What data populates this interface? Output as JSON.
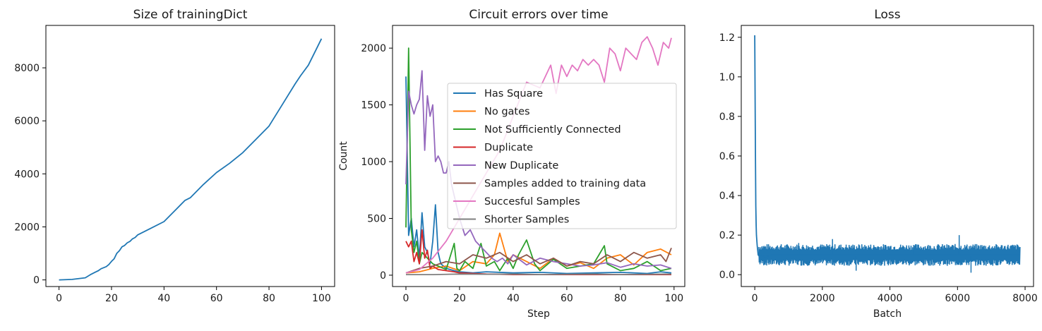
{
  "chart_data": [
    {
      "type": "line",
      "title": "Size of trainingDict",
      "xlabel": "",
      "ylabel": "",
      "xlim": [
        -5,
        105
      ],
      "ylim": [
        -250,
        9600
      ],
      "xticks": [
        0,
        20,
        40,
        60,
        80,
        100
      ],
      "yticks": [
        0,
        2000,
        4000,
        6000,
        8000
      ],
      "series": [
        {
          "color": "#1f77b4",
          "x": [
            0,
            5,
            10,
            12,
            14,
            15,
            16,
            18,
            19,
            20,
            21,
            22,
            23,
            24,
            25,
            26,
            27,
            28,
            29,
            30,
            35,
            40,
            45,
            48,
            50,
            55,
            60,
            65,
            70,
            75,
            80,
            85,
            90,
            92,
            95,
            98,
            100
          ],
          "y": [
            0,
            20,
            80,
            200,
            300,
            350,
            420,
            500,
            580,
            700,
            800,
            1000,
            1100,
            1250,
            1300,
            1400,
            1450,
            1550,
            1600,
            1700,
            1950,
            2200,
            2700,
            3000,
            3100,
            3600,
            4050,
            4400,
            4800,
            5300,
            5800,
            6600,
            7400,
            7700,
            8100,
            8700,
            9100
          ]
        }
      ]
    },
    {
      "type": "line",
      "title": "Circuit errors over time",
      "xlabel": "Step",
      "ylabel": "Count",
      "xlim": [
        -5,
        104
      ],
      "ylim": [
        -100,
        2200
      ],
      "xticks": [
        0,
        20,
        40,
        60,
        80,
        100
      ],
      "yticks": [
        0,
        500,
        1000,
        1500,
        2000
      ],
      "legend_position": "center-right",
      "series": [
        {
          "name": "Has Square",
          "color": "#1f77b4",
          "x": [
            0,
            1,
            2,
            3,
            4,
            5,
            6,
            7,
            8,
            9,
            10,
            11,
            12,
            13,
            14,
            15,
            18,
            20,
            25,
            30,
            40,
            50,
            60,
            70,
            80,
            90,
            95,
            99
          ],
          "y": [
            1750,
            350,
            500,
            250,
            400,
            150,
            550,
            250,
            200,
            100,
            300,
            620,
            200,
            100,
            80,
            60,
            40,
            30,
            20,
            30,
            20,
            25,
            15,
            20,
            25,
            15,
            30,
            20
          ]
        },
        {
          "name": "No gates",
          "color": "#ff7f0e",
          "x": [
            0,
            5,
            10,
            15,
            20,
            25,
            30,
            33,
            35,
            38,
            40,
            45,
            50,
            55,
            60,
            65,
            70,
            75,
            80,
            85,
            90,
            95,
            99
          ],
          "y": [
            20,
            30,
            60,
            80,
            40,
            120,
            100,
            180,
            370,
            120,
            180,
            120,
            60,
            150,
            80,
            110,
            60,
            150,
            180,
            90,
            200,
            230,
            180
          ]
        },
        {
          "name": "Not Sufficiently Connected",
          "color": "#2ca02c",
          "x": [
            0,
            1,
            2,
            3,
            4,
            5,
            6,
            8,
            10,
            12,
            15,
            18,
            19,
            20,
            22,
            25,
            28,
            30,
            33,
            35,
            38,
            40,
            42,
            45,
            48,
            50,
            55,
            60,
            65,
            70,
            72,
            74,
            75,
            80,
            85,
            90,
            95,
            99
          ],
          "y": [
            420,
            2000,
            400,
            200,
            300,
            100,
            200,
            150,
            100,
            80,
            50,
            280,
            60,
            40,
            120,
            60,
            280,
            80,
            120,
            40,
            150,
            60,
            180,
            310,
            100,
            40,
            140,
            60,
            80,
            100,
            180,
            260,
            100,
            40,
            60,
            120,
            40,
            60
          ]
        },
        {
          "name": "Duplicate",
          "color": "#d62728",
          "x": [
            0,
            1,
            2,
            3,
            4,
            5,
            6,
            7,
            8,
            9,
            10,
            12,
            15,
            18,
            20,
            25,
            30,
            35,
            40,
            45,
            50,
            60,
            70,
            80,
            90,
            99
          ],
          "y": [
            300,
            250,
            300,
            120,
            200,
            100,
            400,
            150,
            220,
            60,
            80,
            50,
            40,
            30,
            20,
            15,
            10,
            8,
            5,
            5,
            5,
            5,
            5,
            5,
            5,
            5
          ]
        },
        {
          "name": "New Duplicate",
          "color": "#9467bd",
          "x": [
            0,
            1,
            2,
            3,
            4,
            5,
            6,
            7,
            8,
            9,
            10,
            11,
            12,
            13,
            14,
            15,
            16,
            17,
            18,
            19,
            20,
            22,
            24,
            26,
            28,
            30,
            32,
            34,
            36,
            38,
            40,
            45,
            50,
            55,
            60,
            65,
            70,
            75,
            80,
            85,
            90,
            95,
            99
          ],
          "y": [
            800,
            1620,
            1500,
            1420,
            1500,
            1550,
            1800,
            1100,
            1580,
            1400,
            1500,
            1000,
            1050,
            1000,
            900,
            900,
            1000,
            800,
            700,
            600,
            500,
            350,
            400,
            300,
            250,
            200,
            150,
            120,
            150,
            100,
            180,
            90,
            150,
            120,
            100,
            80,
            90,
            110,
            70,
            100,
            80,
            90,
            60
          ]
        },
        {
          "name": "Samples added to training data",
          "color": "#8c564b",
          "x": [
            0,
            5,
            10,
            15,
            20,
            25,
            30,
            35,
            40,
            45,
            50,
            55,
            60,
            65,
            70,
            75,
            80,
            85,
            90,
            95,
            97,
            99
          ],
          "y": [
            20,
            60,
            80,
            120,
            100,
            180,
            150,
            200,
            120,
            180,
            100,
            150,
            80,
            120,
            100,
            180,
            120,
            200,
            150,
            180,
            120,
            240
          ]
        },
        {
          "name": "Succesful Samples",
          "color": "#e377c2",
          "x": [
            0,
            5,
            10,
            15,
            20,
            25,
            30,
            35,
            40,
            45,
            50,
            52,
            54,
            56,
            58,
            60,
            62,
            64,
            66,
            68,
            70,
            72,
            74,
            76,
            78,
            80,
            82,
            84,
            86,
            88,
            90,
            92,
            94,
            96,
            98,
            99
          ],
          "y": [
            20,
            50,
            150,
            300,
            500,
            700,
            900,
            1100,
            1400,
            1700,
            1650,
            1750,
            1850,
            1600,
            1850,
            1750,
            1850,
            1800,
            1900,
            1850,
            1900,
            1850,
            1700,
            2000,
            1950,
            1800,
            2000,
            1950,
            1900,
            2050,
            2100,
            2000,
            1850,
            2050,
            2000,
            2090
          ]
        },
        {
          "name": "Shorter Samples",
          "color": "#7f7f7f",
          "x": [
            0,
            10,
            20,
            30,
            40,
            50,
            60,
            70,
            80,
            90,
            99
          ],
          "y": [
            5,
            5,
            10,
            8,
            10,
            5,
            8,
            10,
            5,
            8,
            10
          ]
        }
      ]
    },
    {
      "type": "line",
      "title": "Loss",
      "xlabel": "Batch",
      "ylabel": "",
      "xlim": [
        -400,
        8250
      ],
      "ylim": [
        -0.06,
        1.26
      ],
      "xticks": [
        0,
        2000,
        4000,
        6000,
        8000
      ],
      "yticks": [
        0.0,
        0.2,
        0.4,
        0.6,
        0.8,
        1.0,
        1.2
      ],
      "series": [
        {
          "color": "#1f77b4",
          "x": [
            0,
            10,
            20,
            30,
            40,
            50,
            70,
            100,
            150,
            200,
            300,
            500,
            1000,
            2000,
            3000,
            4000,
            5000,
            6000,
            7000,
            7850
          ],
          "y": [
            1.21,
            0.9,
            0.6,
            0.35,
            0.25,
            0.2,
            0.15,
            0.1,
            0.09,
            0.1,
            0.09,
            0.1,
            0.1,
            0.1,
            0.1,
            0.1,
            0.1,
            0.1,
            0.1,
            0.1
          ],
          "band_low": 0.06,
          "band_high": 0.14
        }
      ]
    }
  ]
}
